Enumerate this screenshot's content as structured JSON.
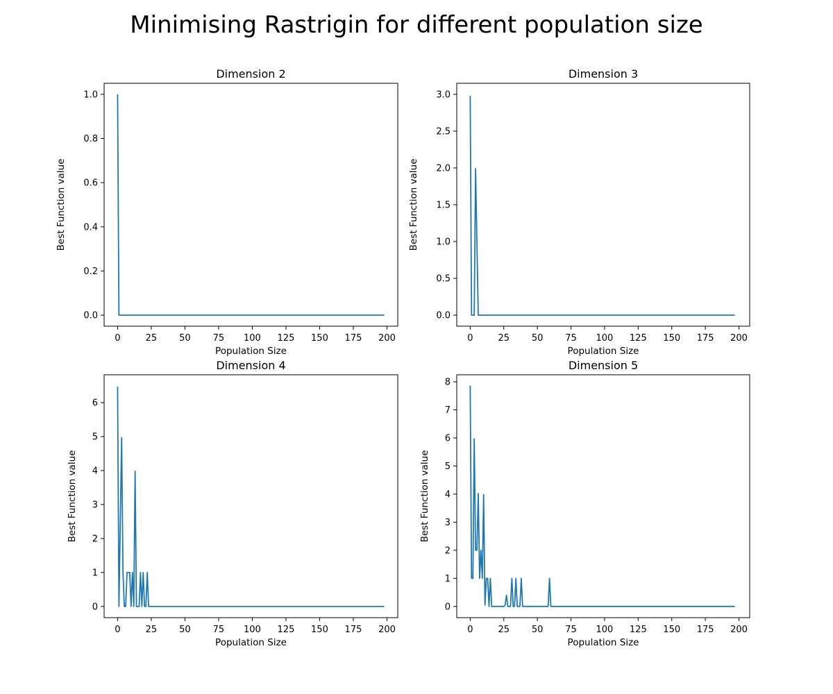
{
  "figure": {
    "title": "Minimising Rastrigin for different population size"
  },
  "colors": {
    "series": "#1f77b4",
    "axes": "#000000",
    "background": "#ffffff"
  },
  "chart_data": [
    {
      "type": "line",
      "title": "Dimension 2",
      "xlabel": "Population Size",
      "ylabel": "Best Function value",
      "xlim": [
        -10,
        208
      ],
      "ylim": [
        -0.05,
        1.05
      ],
      "xticks": [
        0,
        25,
        50,
        75,
        100,
        125,
        150,
        175,
        200
      ],
      "yticks": [
        0,
        0.2,
        0.4,
        0.6,
        0.8,
        1.0
      ],
      "ytick_labels": [
        "0.0",
        "0.2",
        "0.4",
        "0.6",
        "0.8",
        "1.0"
      ],
      "grid": false,
      "series": [
        {
          "x": [
            0,
            1,
            198
          ],
          "y": [
            1.0,
            0.0,
            0.0
          ]
        }
      ]
    },
    {
      "type": "line",
      "title": "Dimension 3",
      "xlabel": "Population Size",
      "ylabel": "Best Function value",
      "xlim": [
        -10,
        208
      ],
      "ylim": [
        -0.15,
        3.15
      ],
      "xticks": [
        0,
        25,
        50,
        75,
        100,
        125,
        150,
        175,
        200
      ],
      "yticks": [
        0,
        0.5,
        1.0,
        1.5,
        2.0,
        2.5,
        3.0
      ],
      "ytick_labels": [
        "0.0",
        "0.5",
        "1.0",
        "1.5",
        "2.0",
        "2.5",
        "3.0"
      ],
      "grid": false,
      "series": [
        {
          "x": [
            0,
            1,
            3,
            4,
            6,
            7,
            197
          ],
          "y": [
            2.98,
            0.0,
            0.0,
            1.99,
            0.0,
            0.0,
            0.0
          ]
        }
      ]
    },
    {
      "type": "line",
      "title": "Dimension 4",
      "xlabel": "Population Size",
      "ylabel": "Best Function value",
      "xlim": [
        -10,
        208
      ],
      "ylim": [
        -0.33,
        6.82
      ],
      "xticks": [
        0,
        25,
        50,
        75,
        100,
        125,
        150,
        175,
        200
      ],
      "yticks": [
        0,
        1,
        2,
        3,
        4,
        5,
        6
      ],
      "ytick_labels": [
        "0",
        "1",
        "2",
        "3",
        "4",
        "5",
        "6"
      ],
      "grid": false,
      "series": [
        {
          "x": [
            0,
            1,
            3,
            4,
            5,
            6,
            7,
            8,
            9,
            10,
            11,
            12,
            13,
            14,
            15,
            16,
            17,
            18,
            19,
            20,
            21,
            22,
            23,
            24,
            198
          ],
          "y": [
            6.47,
            0.0,
            4.97,
            1.0,
            0.0,
            0.0,
            1.0,
            1.0,
            1.0,
            0.0,
            1.0,
            0.0,
            3.98,
            0.0,
            0.0,
            0.0,
            1.0,
            0.0,
            1.0,
            0.0,
            0.0,
            1.0,
            0.0,
            0.0,
            0.0
          ]
        }
      ]
    },
    {
      "type": "line",
      "title": "Dimension 5",
      "xlabel": "Population Size",
      "ylabel": "Best Function value",
      "xlim": [
        -10,
        208
      ],
      "ylim": [
        -0.4,
        8.25
      ],
      "xticks": [
        0,
        25,
        50,
        75,
        100,
        125,
        150,
        175,
        200
      ],
      "yticks": [
        0,
        1,
        2,
        3,
        4,
        5,
        6,
        7,
        8
      ],
      "ytick_labels": [
        "0",
        "1",
        "2",
        "3",
        "4",
        "5",
        "6",
        "7",
        "8"
      ],
      "grid": false,
      "series": [
        {
          "x": [
            0,
            1,
            2,
            3,
            4,
            5,
            6,
            7,
            8,
            9,
            10,
            11,
            12,
            13,
            14,
            15,
            16,
            17,
            18,
            19,
            20,
            21,
            22,
            23,
            24,
            25,
            26,
            27,
            28,
            29,
            30,
            31,
            32,
            33,
            34,
            35,
            36,
            37,
            38,
            39,
            57,
            58,
            59,
            60,
            197
          ],
          "y": [
            7.86,
            1.0,
            1.0,
            5.97,
            2.0,
            2.0,
            4.02,
            1.0,
            2.0,
            1.0,
            3.98,
            0.05,
            1.0,
            1.0,
            0.0,
            1.0,
            0.0,
            0.0,
            0.0,
            0.0,
            0.0,
            0.0,
            0.0,
            0.0,
            0.0,
            0.0,
            0.05,
            0.4,
            0.0,
            0.0,
            0.0,
            1.0,
            0.0,
            0.0,
            1.0,
            0.0,
            0.0,
            0.0,
            1.0,
            0.0,
            0.0,
            0.0,
            1.0,
            0.0,
            0.0
          ]
        }
      ]
    }
  ]
}
